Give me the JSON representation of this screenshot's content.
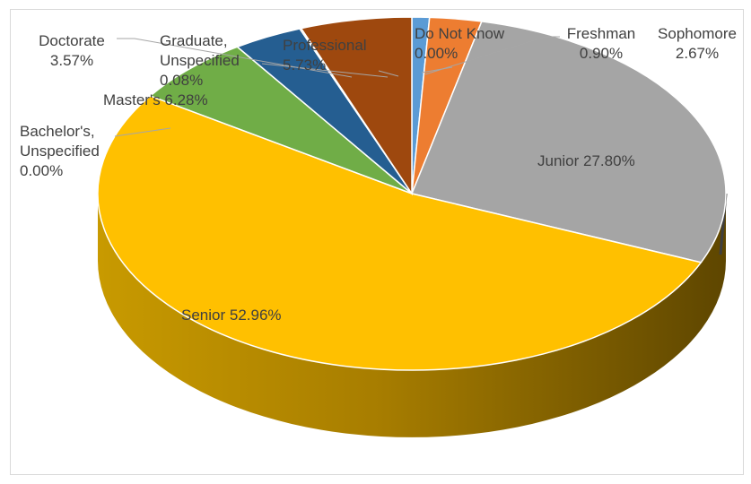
{
  "chart_data": {
    "type": "pie",
    "title": "",
    "legend": "none",
    "slices": [
      {
        "category": "Do Not Know",
        "value": 0.0,
        "value_label": "0.00%",
        "color": "#5b9bd5",
        "label_lines": [
          "Do Not Know",
          "0.00%"
        ]
      },
      {
        "category": "Freshman",
        "value": 0.9,
        "value_label": "0.90%",
        "color": "#ed7d31",
        "label_lines": [
          "Freshman",
          "0.90%"
        ]
      },
      {
        "category": "Sophomore",
        "value": 2.67,
        "value_label": "2.67%",
        "color": "#a5a5a5",
        "label_lines": [
          "Sophomore",
          "2.67%"
        ]
      },
      {
        "category": "Junior",
        "value": 27.8,
        "value_label": "27.80%",
        "color": "#ffc000",
        "label_lines": [
          "Junior 27.80%"
        ]
      },
      {
        "category": "Senior",
        "value": 52.96,
        "value_label": "52.96%",
        "color": "#4472c4",
        "label_lines": [
          "Senior 52.96%"
        ]
      },
      {
        "category": "Bachelor's, Unspecified",
        "value": 0.0,
        "value_label": "0.00%",
        "color": "#70ad47",
        "label_lines": [
          "Bachelor's,",
          "Unspecified",
          "0.00%"
        ]
      },
      {
        "category": "Master's",
        "value": 6.28,
        "value_label": "6.28%",
        "color": "#255e91",
        "label_lines": [
          "Master's 6.28%"
        ]
      },
      {
        "category": "Doctorate",
        "value": 3.57,
        "value_label": "3.57%",
        "color": "#9e480e",
        "label_lines": [
          "Doctorate",
          "3.57%"
        ]
      },
      {
        "category": "Graduate, Unspecified",
        "value": 0.08,
        "value_label": "0.08%",
        "color": "#636363",
        "label_lines": [
          "Graduate,",
          "Unspecified",
          "0.08%"
        ]
      },
      {
        "category": "Professional",
        "value": 5.73,
        "value_label": "5.73%",
        "color": "#997300",
        "label_lines": [
          "Professional",
          "5.73%"
        ]
      }
    ]
  }
}
